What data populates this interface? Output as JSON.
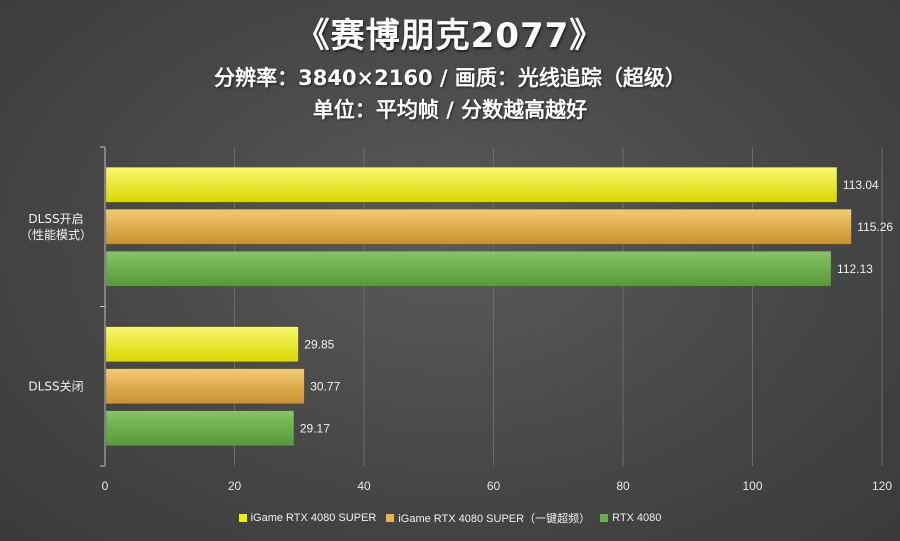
{
  "title": "《赛博朋克2077》",
  "subtitle1": "分辨率：3840×2160 / 画质：光线追踪（超级）",
  "subtitle2": "单位：平均帧 / 分数越高越好",
  "colors": {
    "series1": "#f0f000",
    "series2": "#e8b64a",
    "series3": "#6ab04c"
  },
  "chart_data": {
    "type": "bar",
    "orientation": "horizontal",
    "categories": [
      {
        "lines": [
          "DLSS开启",
          "（性能模式）"
        ]
      },
      {
        "lines": [
          "DLSS关闭"
        ]
      }
    ],
    "series": [
      {
        "name": "iGame RTX 4080 SUPER",
        "values": [
          113.04,
          29.85
        ]
      },
      {
        "name": "iGame RTX 4080 SUPER（一键超频）",
        "values": [
          115.26,
          30.77
        ]
      },
      {
        "name": "RTX 4080",
        "values": [
          112.13,
          29.17
        ]
      }
    ],
    "value_labels": [
      [
        "113.04",
        "29.85"
      ],
      [
        "115.26",
        "30.77"
      ],
      [
        "112.13",
        "29.17"
      ]
    ],
    "xlim": [
      0,
      120
    ],
    "xticks": [
      "0",
      "20",
      "40",
      "60",
      "80",
      "100",
      "120"
    ],
    "grid": "vertical",
    "legend_position": "bottom"
  }
}
